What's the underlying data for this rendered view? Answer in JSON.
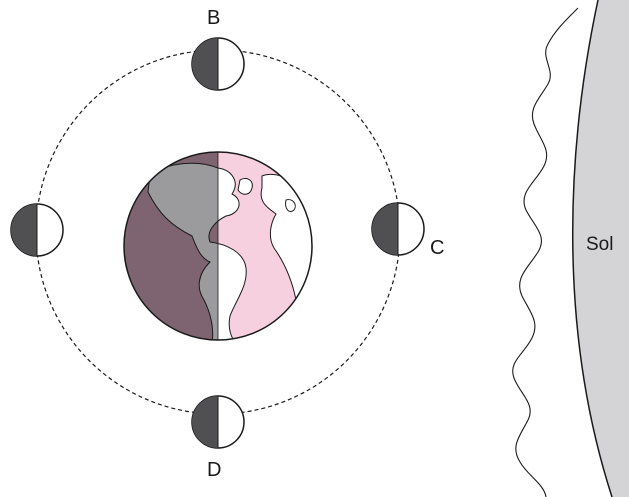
{
  "labels": {
    "moon_top": "B",
    "moon_right": "C",
    "moon_bottom": "D",
    "sun": "Sol"
  },
  "colors": {
    "sun_fill": "#d4d4d6",
    "earth_night": "#7d6470",
    "earth_day": "#f7d0df",
    "land_day": "#ffffff",
    "land_night": "#9b9b9d",
    "moon_dark": "#505052",
    "moon_light": "#ffffff",
    "outline": "#1a1a1a"
  }
}
